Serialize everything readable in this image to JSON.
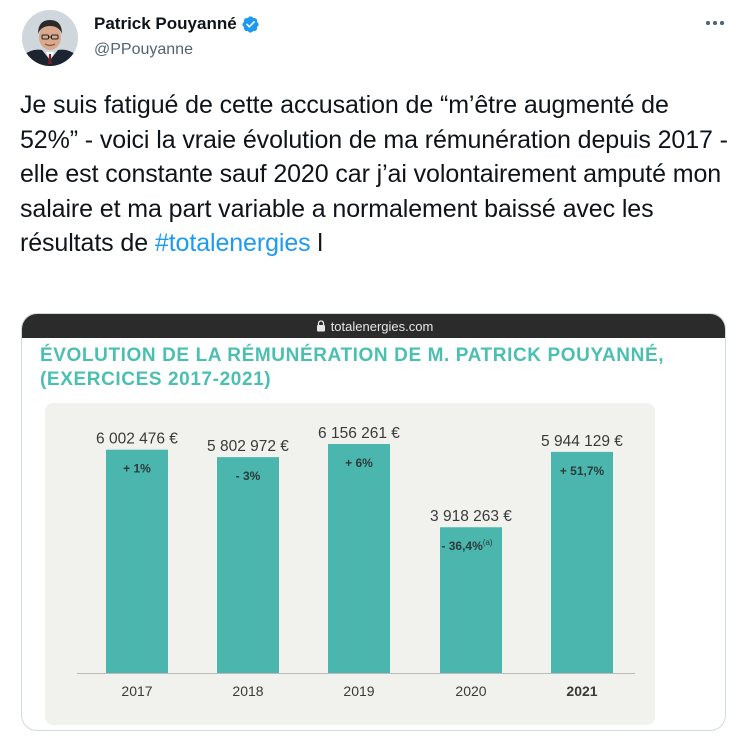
{
  "author": {
    "name": "Patrick Pouyanné",
    "handle": "@PPouyanne",
    "verified": true,
    "avatar_icon": "profile-photo"
  },
  "tweet": {
    "text_before": "Je suis fatigué de cette accusation de “m’être augmenté de 52%” - voici la vraie évolution de ma rémunération depuis 2017 - elle est constante sauf 2020 car j’ai volontairement amputé mon salaire et ma part variable a normalement baissé avec les résultats de ",
    "hashtag": "#totalenergies",
    "text_after": " l"
  },
  "media": {
    "url_bar": "totalenergies.com",
    "title_line1": "ÉVOLUTION DE LA RÉMUNÉRATION DE M. PATRICK POUYANNÉ,",
    "title_line2": "(EXERCICES 2017-2021)"
  },
  "colors": {
    "accent": "#1d9bf0",
    "bar": "#4bb6ae",
    "title_teal": "#4bbfb1",
    "panel_bg": "#f1f2ee"
  },
  "chart_data": {
    "type": "bar",
    "categories": [
      "2017",
      "2018",
      "2019",
      "2020",
      "2021"
    ],
    "values": [
      6002476,
      5802972,
      6156261,
      3918263,
      5944129
    ],
    "value_labels": [
      "6 002 476 €",
      "5 802 972 €",
      "6 156 261 €",
      "3 918 263 €",
      "5 944 129 €"
    ],
    "change_labels": [
      "+ 1%",
      "- 3%",
      "+ 6%",
      "- 36,4%",
      "+ 51,7%"
    ],
    "change_footnotes": [
      "",
      "",
      "",
      "(a)",
      ""
    ],
    "bold_category": "2021",
    "title": "ÉVOLUTION DE LA RÉMUNÉRATION DE M. PATRICK POUYANNÉ, (EXERCICES 2017-2021)",
    "xlabel": "",
    "ylabel": "",
    "grid": false
  }
}
